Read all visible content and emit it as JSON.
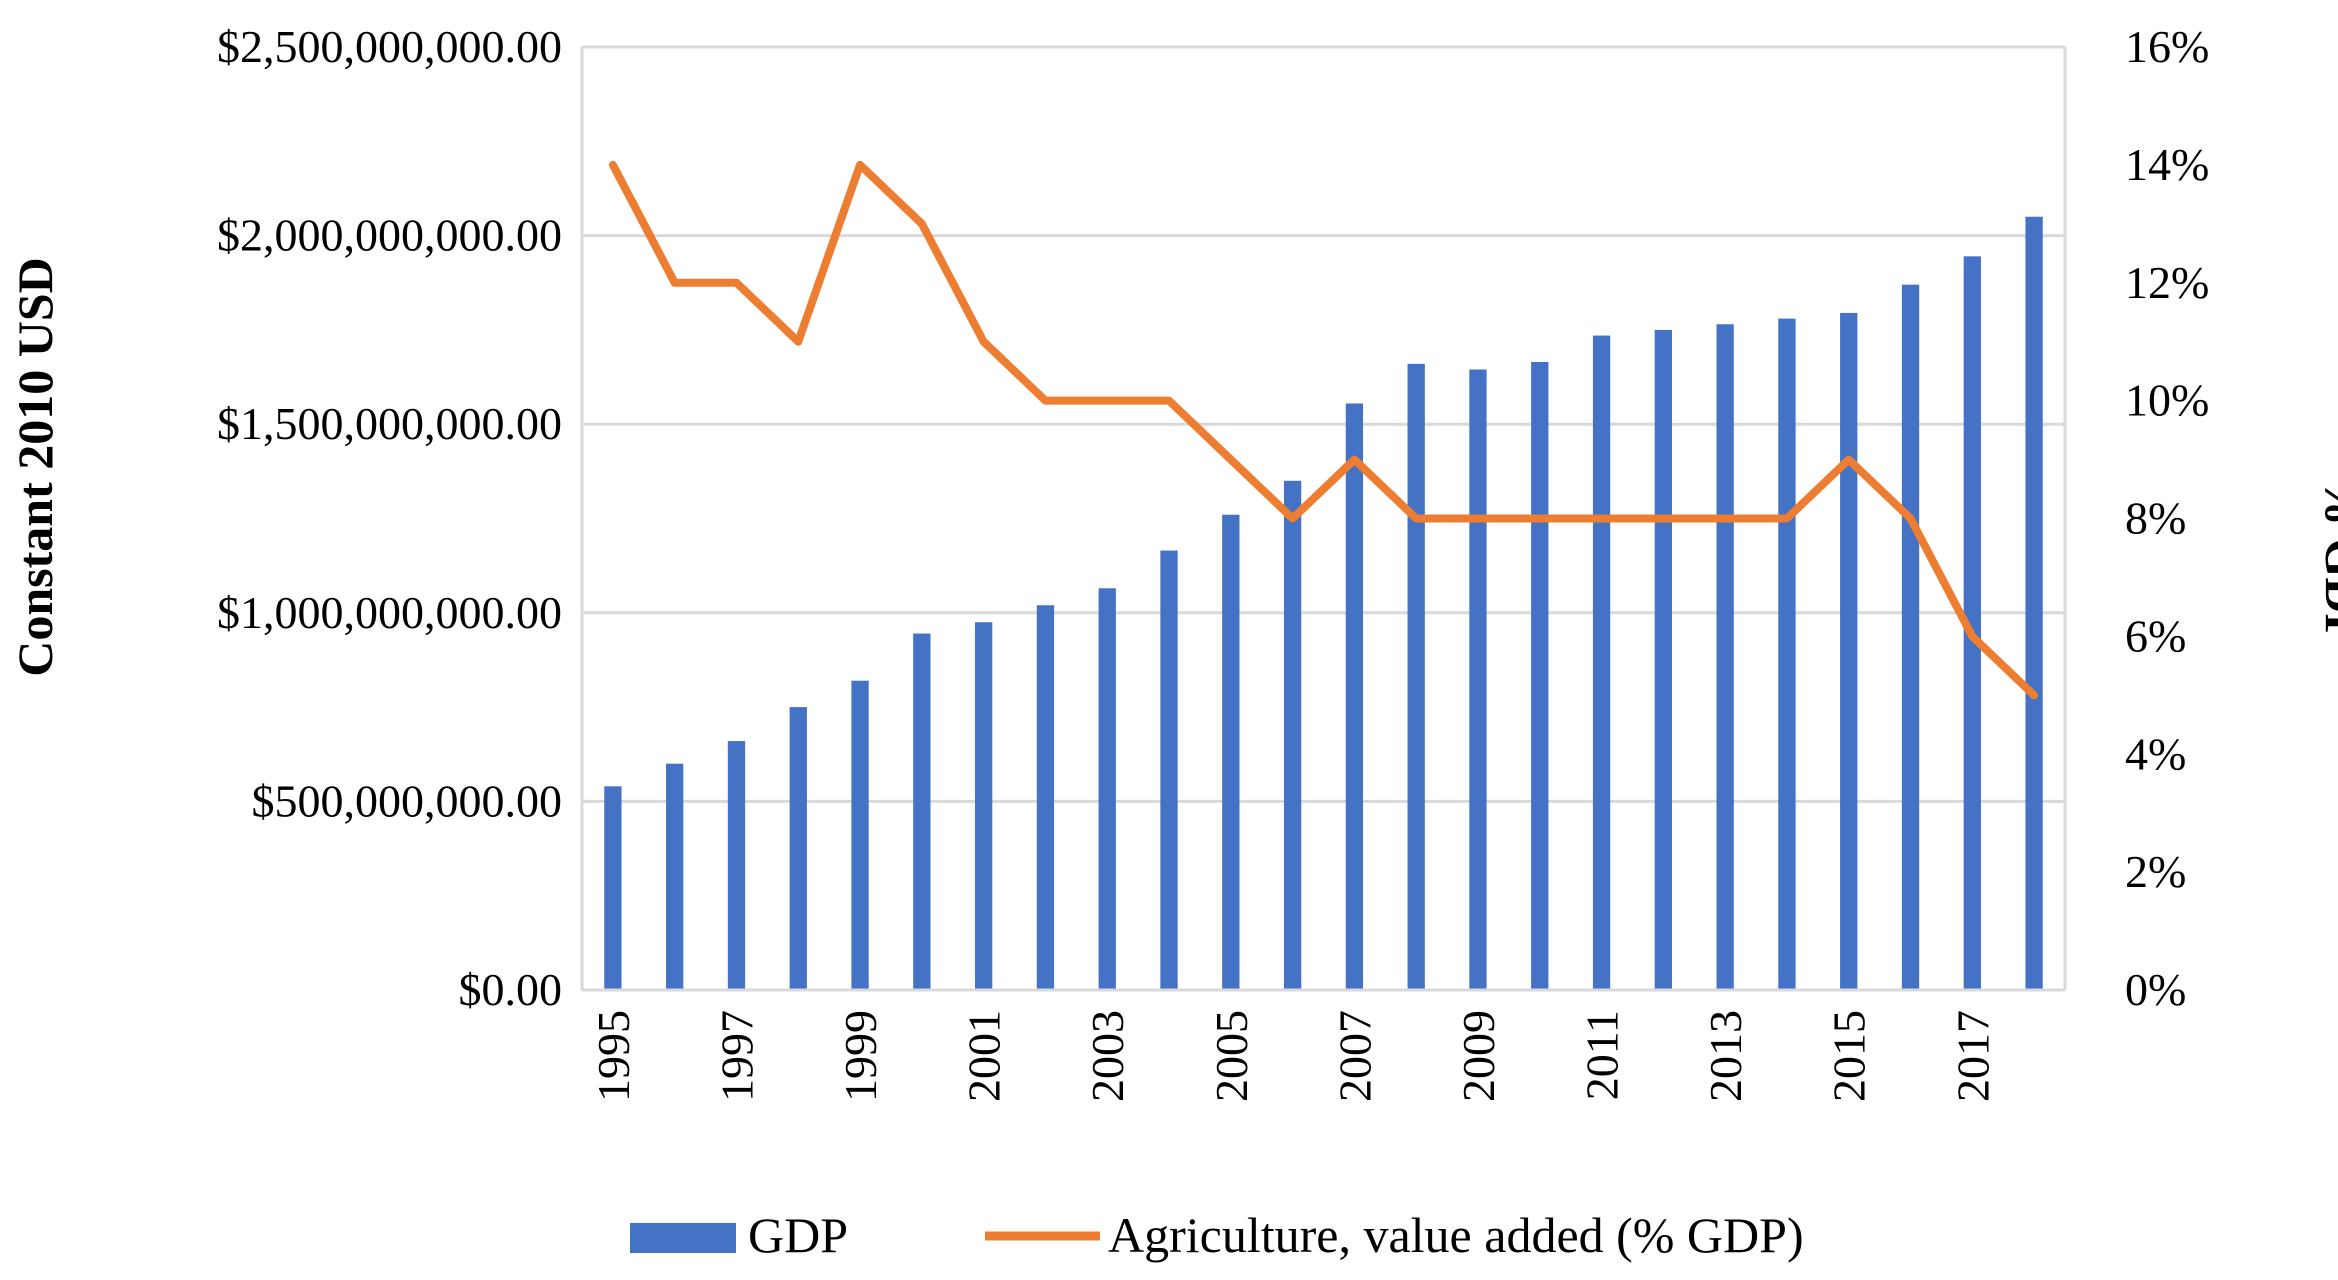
{
  "chart_data": {
    "type": "bar+line",
    "categories": [
      1995,
      1996,
      1997,
      1998,
      1999,
      2000,
      2001,
      2002,
      2003,
      2004,
      2005,
      2006,
      2007,
      2008,
      2009,
      2010,
      2011,
      2012,
      2013,
      2014,
      2015,
      2016,
      2017,
      2018
    ],
    "x_tick_labels": [
      "1995",
      "1997",
      "1999",
      "2001",
      "2003",
      "2005",
      "2007",
      "2009",
      "2011",
      "2013",
      "2015",
      "2017"
    ],
    "series": [
      {
        "name": "GDP",
        "type": "bar",
        "axis": "left",
        "color": "#4472C4",
        "values": [
          540000000,
          600000000,
          660000000,
          750000000,
          820000000,
          945000000,
          975000000,
          1020000000,
          1065000000,
          1165000000,
          1260000000,
          1350000000,
          1555000000,
          1660000000,
          1645000000,
          1665000000,
          1735000000,
          1750000000,
          1765000000,
          1780000000,
          1795000000,
          1870000000,
          1945000000,
          2050000000
        ]
      },
      {
        "name": "Agriculture, value added (% GDP)",
        "type": "line",
        "axis": "right",
        "color": "#ED7D31",
        "values": [
          14,
          12,
          12,
          11,
          14,
          13,
          11,
          10,
          10,
          10,
          9,
          8,
          9,
          8,
          8,
          8,
          8,
          8,
          8,
          8,
          9,
          8,
          6,
          5
        ]
      }
    ],
    "left_axis": {
      "title": "Constant 2010 USD",
      "range": [
        0,
        2500000000
      ],
      "tick_labels": [
        "$0.00",
        "$500,000,000.00",
        "$1,000,000,000.00",
        "$1,500,000,000.00",
        "$2,000,000,000.00",
        "$2,500,000,000.00"
      ]
    },
    "right_axis": {
      "title": "% GDP",
      "range": [
        0,
        16
      ],
      "tick_labels": [
        "0%",
        "2%",
        "4%",
        "6%",
        "8%",
        "10%",
        "12%",
        "14%",
        "16%"
      ]
    },
    "grid": true,
    "legend": {
      "position": "bottom",
      "entries": [
        "GDP",
        "Agriculture, value added (% GDP)"
      ]
    }
  }
}
